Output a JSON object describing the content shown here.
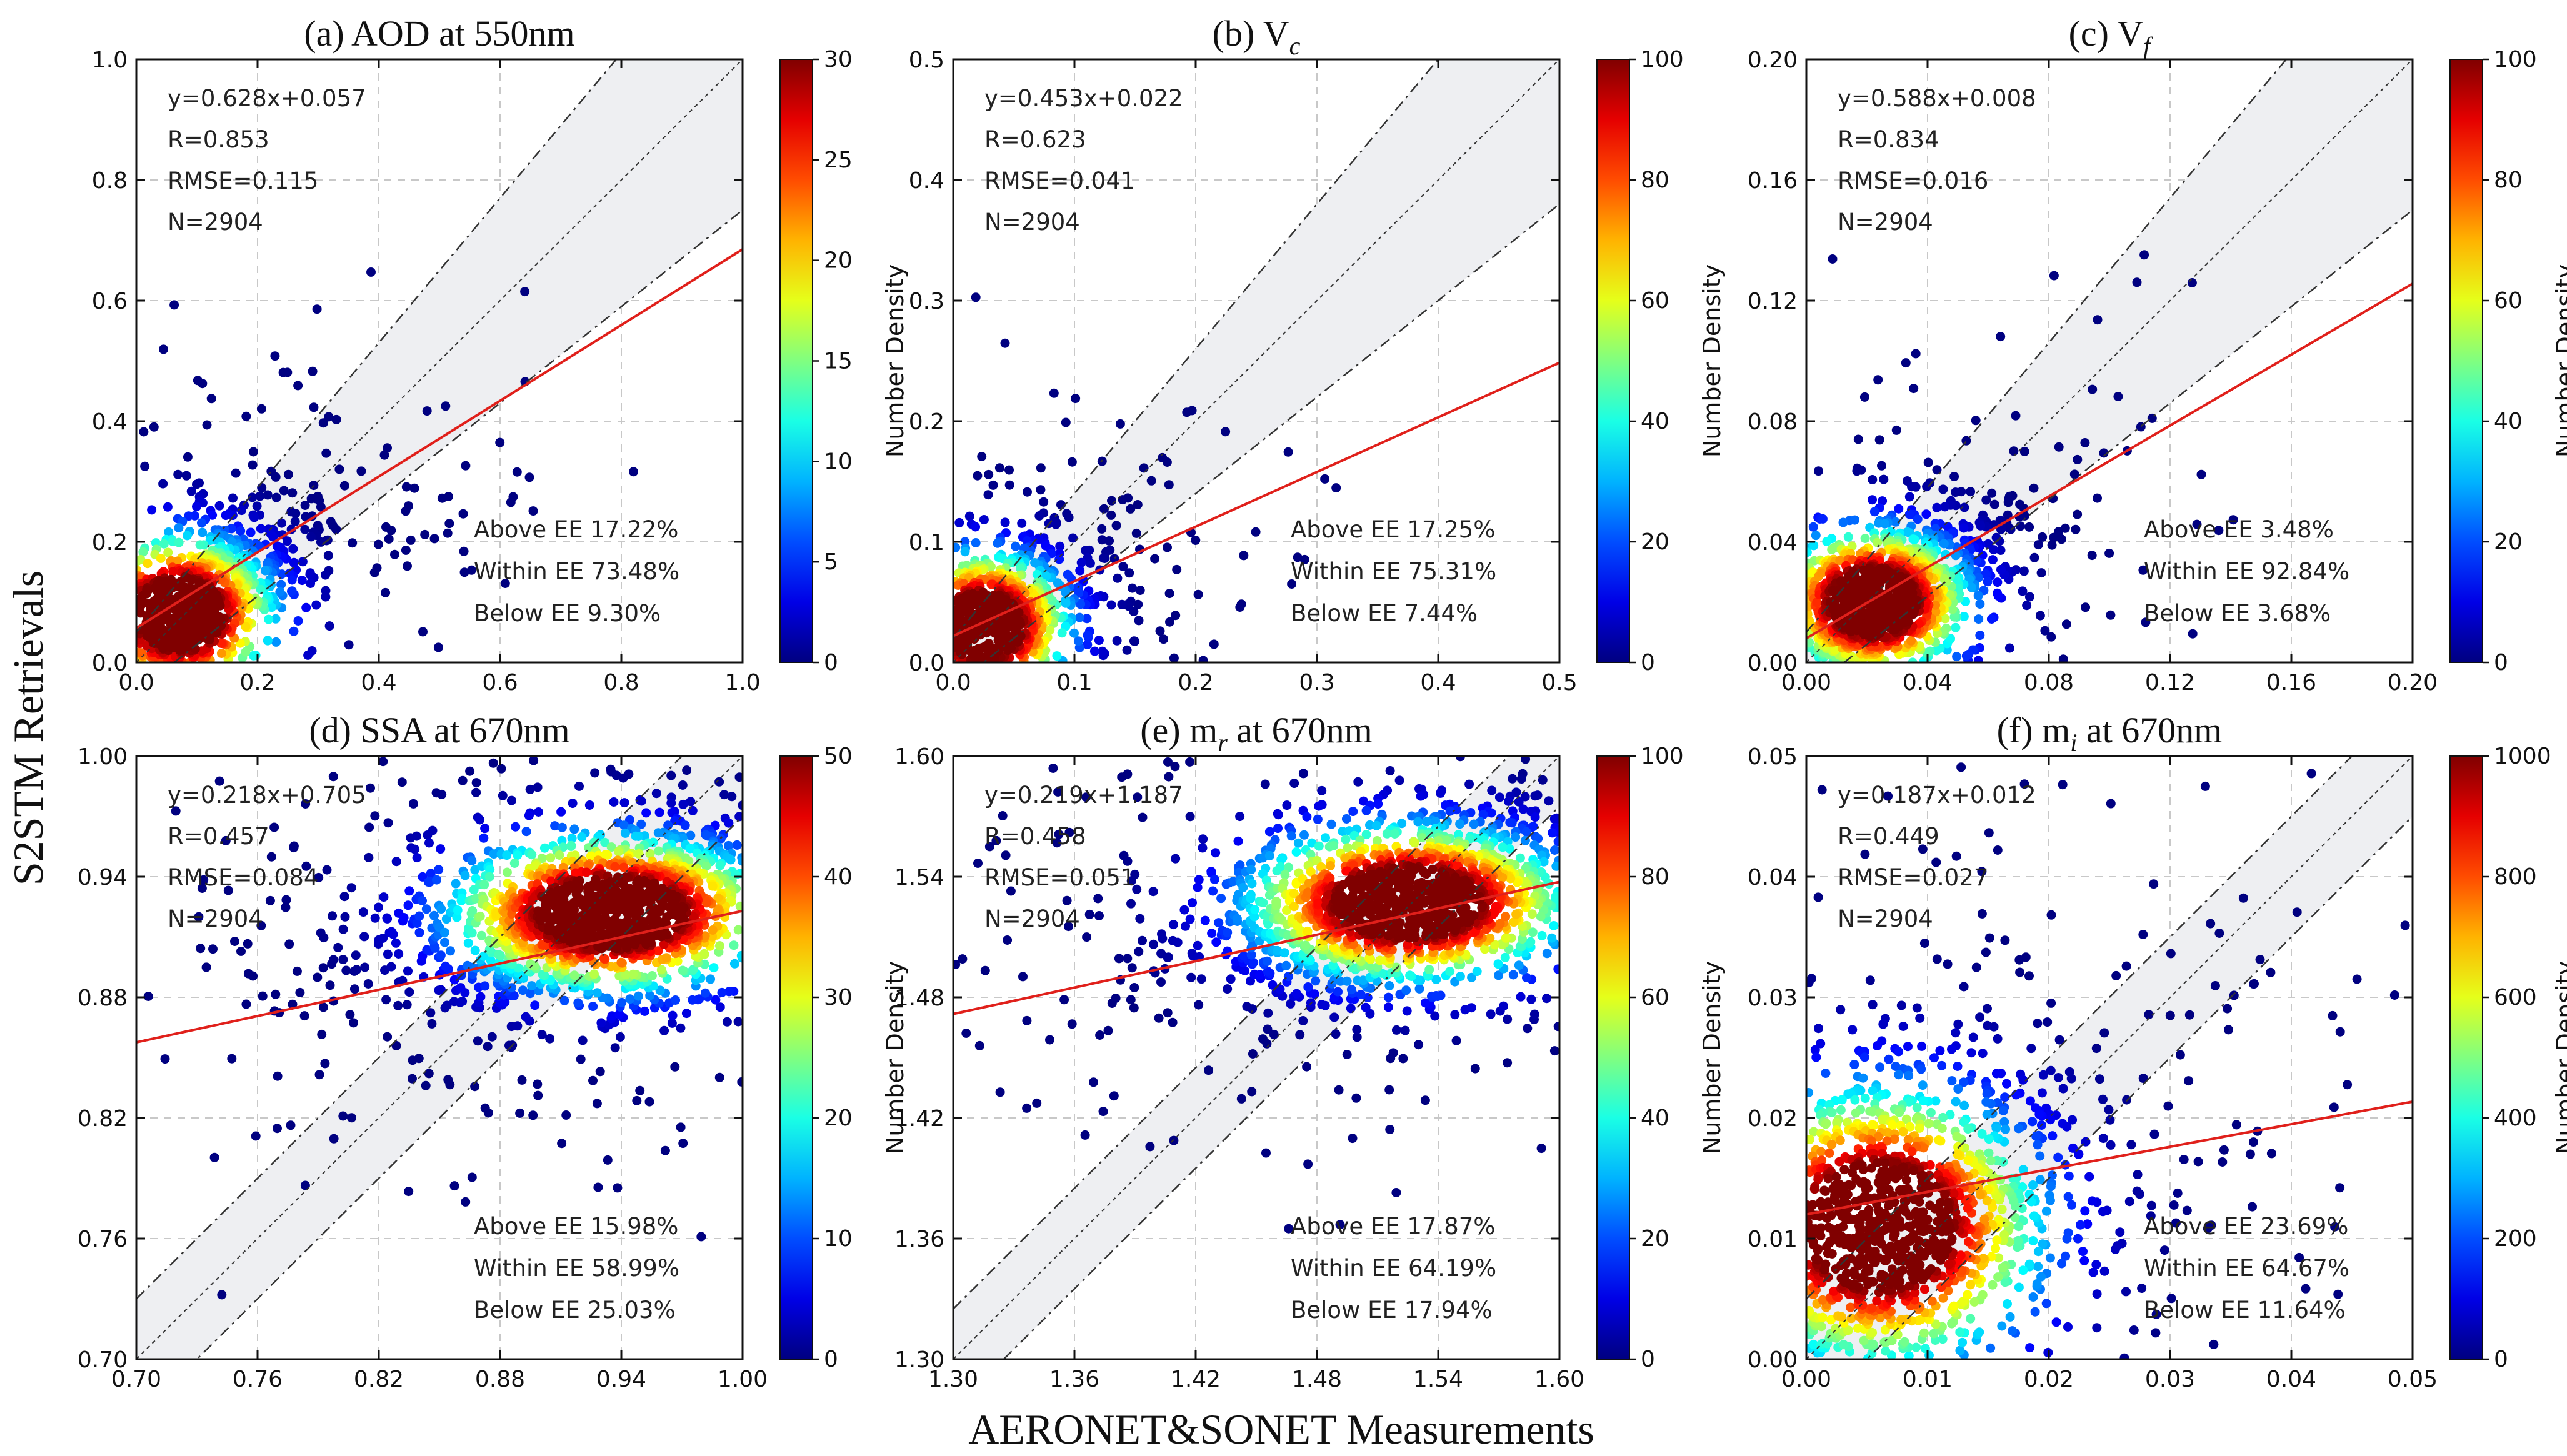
{
  "figure": {
    "xlabel": "AERONET&SONET Measurements",
    "ylabel": "S2STM Retrievals",
    "colorbar_label": "Number Density"
  },
  "chart_data": [
    {
      "type": "scatter",
      "id": "a",
      "title": "(a) AOD at 550nm",
      "title_base": "(a) AOD at 550nm",
      "title_sub": "",
      "xlim": [
        0,
        1.0
      ],
      "ylim": [
        0,
        1.0
      ],
      "ticks": [
        0.0,
        0.2,
        0.4,
        0.6,
        0.8,
        1.0
      ],
      "tick_labels": [
        "0.0",
        "0.2",
        "0.4",
        "0.6",
        "0.8",
        "1.0"
      ],
      "fit": {
        "slope": 0.628,
        "intercept": 0.057
      },
      "ee": {
        "abs": 0.05,
        "rel": 0.2
      },
      "stats": [
        "y=0.628x+0.057",
        "R=0.853",
        "RMSE=0.115",
        "N=2904"
      ],
      "ee_stats": [
        "Above EE 17.22%",
        "Within EE 73.48%",
        "Below EE 9.30%"
      ],
      "colorbar": {
        "min": 0,
        "max": 30,
        "ticks": [
          0,
          5,
          10,
          15,
          20,
          25,
          30
        ]
      },
      "density": {
        "cx": 0.07,
        "cy": 0.08,
        "sx": 0.09,
        "sy": 0.075,
        "rho": 0.6,
        "ncore": 900,
        "nouter": 520,
        "spread": 2.6
      }
    },
    {
      "type": "scatter",
      "id": "b",
      "title": "(b) Vc",
      "title_base": "(b) V",
      "title_sub": "c",
      "xlim": [
        0,
        0.5
      ],
      "ylim": [
        0,
        0.5
      ],
      "ticks": [
        0.0,
        0.1,
        0.2,
        0.3,
        0.4,
        0.5
      ],
      "tick_labels": [
        "0.0",
        "0.1",
        "0.2",
        "0.3",
        "0.4",
        "0.5"
      ],
      "fit": {
        "slope": 0.453,
        "intercept": 0.022
      },
      "ee": {
        "abs": 0.02,
        "rel": 0.2
      },
      "stats": [
        "y=0.453x+0.022",
        "R=0.623",
        "RMSE=0.041",
        "N=2904"
      ],
      "ee_stats": [
        "Above EE 17.25%",
        "Within EE 75.31%",
        "Below EE 7.44%"
      ],
      "colorbar": {
        "min": 0,
        "max": 100,
        "ticks": [
          0,
          20,
          40,
          60,
          80,
          100
        ]
      },
      "density": {
        "cx": 0.025,
        "cy": 0.03,
        "sx": 0.04,
        "sy": 0.035,
        "rho": 0.4,
        "ncore": 900,
        "nouter": 420,
        "spread": 2.4
      }
    },
    {
      "type": "scatter",
      "id": "c",
      "title": "(c) Vf",
      "title_base": "(c) V",
      "title_sub": "f",
      "xlim": [
        0,
        0.2
      ],
      "ylim": [
        0,
        0.2
      ],
      "ticks": [
        0.0,
        0.04,
        0.08,
        0.12,
        0.16,
        0.2
      ],
      "tick_labels": [
        "0.00",
        "0.04",
        "0.08",
        "0.12",
        "0.16",
        "0.20"
      ],
      "fit": {
        "slope": 0.588,
        "intercept": 0.008
      },
      "ee": {
        "abs": 0.01,
        "rel": 0.2
      },
      "stats": [
        "y=0.588x+0.008",
        "R=0.834",
        "RMSE=0.016",
        "N=2904"
      ],
      "ee_stats": [
        "Above EE 3.48%",
        "Within EE 92.84%",
        "Below EE 3.68%"
      ],
      "colorbar": {
        "min": 0,
        "max": 100,
        "ticks": [
          0,
          20,
          40,
          60,
          80,
          100
        ]
      },
      "density": {
        "cx": 0.022,
        "cy": 0.02,
        "sx": 0.018,
        "sy": 0.014,
        "rho": 0.5,
        "ncore": 1100,
        "nouter": 420,
        "spread": 2.6
      }
    },
    {
      "type": "scatter",
      "id": "d",
      "title": "(d) SSA at 670nm",
      "title_base": "(d) SSA at 670nm",
      "title_sub": "",
      "xlim": [
        0.7,
        1.0
      ],
      "ylim": [
        0.7,
        1.0
      ],
      "ticks": [
        0.7,
        0.76,
        0.82,
        0.88,
        0.94,
        1.0
      ],
      "tick_labels": [
        "0.70",
        "0.76",
        "0.82",
        "0.88",
        "0.94",
        "1.00"
      ],
      "fit": {
        "slope": 0.218,
        "intercept": 0.705
      },
      "ee": {
        "abs": 0.03,
        "rel": 0.0
      },
      "stats": [
        "y=0.218x+0.705",
        "R=0.457",
        "RMSE=0.084",
        "N=2904"
      ],
      "ee_stats": [
        "Above EE 15.98%",
        "Within EE 58.99%",
        "Below EE 25.03%"
      ],
      "colorbar": {
        "min": 0,
        "max": 50,
        "ticks": [
          0,
          10,
          20,
          30,
          40,
          50
        ]
      },
      "density": {
        "cx": 0.935,
        "cy": 0.922,
        "sx": 0.045,
        "sy": 0.022,
        "rho": 0.3,
        "ncore": 1300,
        "nouter": 650,
        "spread": 2.6
      }
    },
    {
      "type": "scatter",
      "id": "e",
      "title": "(e) mr at 670nm",
      "title_base": "(e) m",
      "title_sub": "r",
      "title_tail": " at 670nm",
      "xlim": [
        1.3,
        1.6
      ],
      "ylim": [
        1.3,
        1.6
      ],
      "ticks": [
        1.3,
        1.36,
        1.42,
        1.48,
        1.54,
        1.6
      ],
      "tick_labels": [
        "1.30",
        "1.36",
        "1.42",
        "1.48",
        "1.54",
        "1.60"
      ],
      "fit": {
        "slope": 0.219,
        "intercept": 1.187
      },
      "ee": {
        "abs": 0.025,
        "rel": 0.0
      },
      "stats": [
        "y=0.219x+1.187",
        "R=0.458",
        "RMSE=0.051",
        "N=2904"
      ],
      "ee_stats": [
        "Above EE 17.87%",
        "Within EE 64.19%",
        "Below EE 17.94%"
      ],
      "colorbar": {
        "min": 0,
        "max": 100,
        "ticks": [
          0,
          20,
          40,
          60,
          80,
          100
        ]
      },
      "density": {
        "cx": 1.525,
        "cy": 1.527,
        "sx": 0.045,
        "sy": 0.022,
        "rho": 0.25,
        "ncore": 1300,
        "nouter": 600,
        "spread": 2.5
      }
    },
    {
      "type": "scatter",
      "id": "f",
      "title": "(f) mi at 670nm",
      "title_base": "(f) m",
      "title_sub": "i",
      "title_tail": " at 670nm",
      "xlim": [
        0,
        0.05
      ],
      "ylim": [
        0,
        0.05
      ],
      "ticks": [
        0.0,
        0.01,
        0.02,
        0.03,
        0.04,
        0.05
      ],
      "tick_labels": [
        "0.00",
        "0.01",
        "0.02",
        "0.03",
        "0.04",
        "0.05"
      ],
      "ytick_labels": [
        "0.00",
        "0.01",
        "0.02",
        "0.03",
        "0.04",
        "0.05"
      ],
      "fit": {
        "slope": 0.187,
        "intercept": 0.012
      },
      "ee": {
        "abs": 0.005,
        "rel": 0.0
      },
      "stats": [
        "y=0.187x+0.012",
        "R=0.449",
        "RMSE=0.027",
        "N=2904"
      ],
      "ee_stats": [
        "Above EE 23.69%",
        "Within EE 64.67%",
        "Below EE 11.64%"
      ],
      "colorbar": {
        "min": 0,
        "max": 1000,
        "ticks": [
          0,
          200,
          400,
          600,
          800,
          1000
        ]
      },
      "density": {
        "cx": 0.006,
        "cy": 0.011,
        "sx": 0.0075,
        "sy": 0.0065,
        "rho": 0.2,
        "ncore": 1400,
        "nouter": 600,
        "spread": 2.7
      }
    }
  ]
}
